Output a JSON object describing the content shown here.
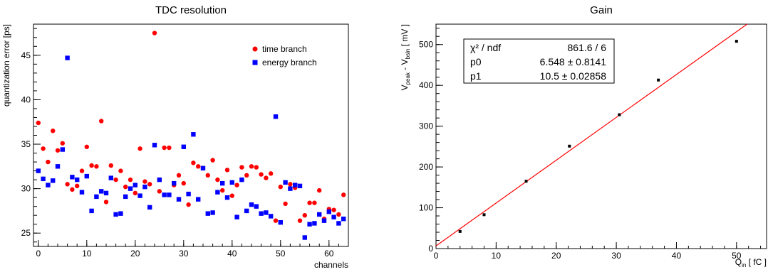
{
  "chart_data": [
    {
      "type": "scatter",
      "title": "TDC resolution",
      "xlabel": "channels",
      "ylabel": "quantization error [ps]",
      "xlim": [
        -1,
        64
      ],
      "ylim": [
        23.5,
        48.5
      ],
      "xticks": [
        0,
        10,
        20,
        30,
        40,
        50,
        60
      ],
      "yticks": [
        25,
        30,
        35,
        40,
        45
      ],
      "grid": false,
      "legend_position": "top-right",
      "series": [
        {
          "name": "time branch",
          "color": "#ff0000",
          "marker": "circle",
          "x": [
            0,
            1,
            2,
            3,
            4,
            5,
            6,
            7,
            8,
            9,
            10,
            11,
            12,
            13,
            14,
            15,
            16,
            17,
            18,
            19,
            20,
            21,
            22,
            23,
            24,
            25,
            26,
            27,
            28,
            29,
            30,
            31,
            32,
            33,
            34,
            35,
            36,
            37,
            38,
            39,
            40,
            41,
            42,
            43,
            44,
            45,
            46,
            47,
            48,
            49,
            50,
            51,
            52,
            53,
            54,
            55,
            56,
            57,
            58,
            59,
            60,
            61,
            62,
            63
          ],
          "y": [
            37.4,
            34.5,
            33.0,
            36.5,
            34.3,
            35.1,
            30.5,
            29.9,
            30.3,
            32.0,
            34.7,
            32.6,
            32.5,
            37.6,
            28.5,
            32.6,
            31.0,
            32.0,
            30.2,
            31.0,
            29.5,
            34.5,
            30.8,
            30.5,
            47.5,
            29.7,
            34.6,
            34.6,
            30.4,
            31.5,
            30.6,
            28.2,
            32.9,
            32.5,
            32.3,
            31.5,
            33.2,
            31.0,
            29.8,
            32.1,
            29.2,
            30.4,
            32.4,
            31.5,
            32.5,
            32.4,
            31.6,
            31.2,
            31.7,
            26.4,
            30.2,
            28.3,
            30.5,
            30.1,
            26.4,
            27.0,
            28.4,
            28.4,
            29.8,
            26.6,
            27.7,
            27.6,
            27.1,
            29.3
          ]
        },
        {
          "name": "energy branch",
          "color": "#0000ff",
          "marker": "square",
          "x": [
            0,
            1,
            2,
            3,
            4,
            5,
            6,
            7,
            8,
            9,
            10,
            11,
            12,
            13,
            14,
            15,
            16,
            17,
            18,
            19,
            20,
            21,
            22,
            23,
            24,
            25,
            26,
            27,
            28,
            29,
            30,
            31,
            32,
            33,
            34,
            35,
            36,
            37,
            38,
            39,
            40,
            41,
            42,
            43,
            44,
            45,
            46,
            47,
            48,
            49,
            50,
            51,
            52,
            53,
            54,
            55,
            56,
            57,
            58,
            59,
            60,
            61,
            62,
            63
          ],
          "y": [
            32.0,
            31.1,
            30.4,
            30.9,
            32.5,
            34.4,
            44.7,
            31.3,
            31.0,
            29.6,
            31.4,
            27.5,
            29.1,
            29.7,
            29.5,
            31.2,
            27.1,
            27.2,
            29.1,
            30.0,
            30.4,
            29.2,
            30.2,
            27.9,
            34.9,
            31.0,
            29.3,
            29.3,
            30.6,
            28.8,
            34.7,
            29.4,
            36.1,
            28.8,
            32.3,
            27.2,
            27.3,
            29.6,
            30.6,
            29.0,
            30.7,
            26.8,
            31.0,
            27.5,
            28.2,
            28.0,
            27.2,
            27.3,
            26.9,
            38.1,
            26.2,
            30.7,
            30.0,
            30.4,
            30.3,
            24.5,
            26.0,
            26.1,
            27.1,
            26.4,
            27.4,
            26.8,
            26.1,
            26.6
          ]
        }
      ]
    },
    {
      "type": "scatter",
      "title": "Gain",
      "xlabel": "Q_in [fC]",
      "ylabel": "V_peak - V_bsln [mV]",
      "xlim": [
        0,
        55
      ],
      "ylim": [
        0,
        550
      ],
      "xticks": [
        0,
        10,
        20,
        30,
        40,
        50
      ],
      "yticks": [
        0,
        100,
        200,
        300,
        400,
        500
      ],
      "grid": false,
      "series": [
        {
          "name": "",
          "color": "#000000",
          "marker": "square",
          "x": [
            4,
            8,
            15,
            22.2,
            30.5,
            37,
            50
          ],
          "y": [
            42,
            83,
            165,
            251,
            328,
            413,
            508
          ]
        }
      ],
      "fit": {
        "color": "#ff0000",
        "p0": 6.548,
        "p1": 10.5,
        "x_range": [
          0,
          55
        ]
      },
      "stats_box": {
        "rows": [
          {
            "label": "χ² / ndf",
            "value": "861.6 / 6"
          },
          {
            "label": "p0",
            "value": "6.548 ± 0.8141"
          },
          {
            "label": "p1",
            "value": "10.5 ± 0.02858"
          }
        ]
      }
    }
  ]
}
